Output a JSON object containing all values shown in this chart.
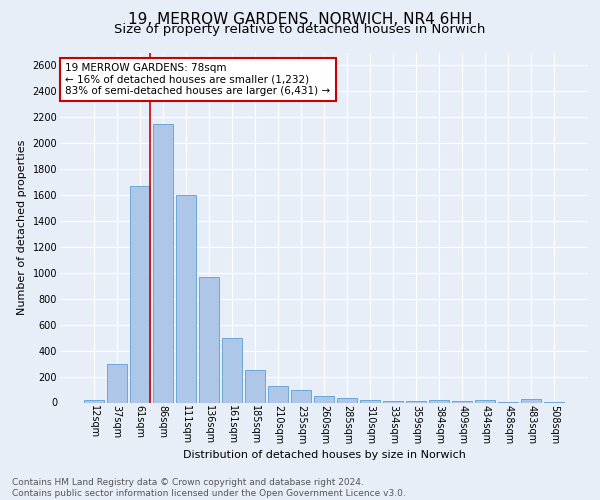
{
  "title": "19, MERROW GARDENS, NORWICH, NR4 6HH",
  "subtitle": "Size of property relative to detached houses in Norwich",
  "xlabel": "Distribution of detached houses by size in Norwich",
  "ylabel": "Number of detached properties",
  "footnote1": "Contains HM Land Registry data © Crown copyright and database right 2024.",
  "footnote2": "Contains public sector information licensed under the Open Government Licence v3.0.",
  "categories": [
    "12sqm",
    "37sqm",
    "61sqm",
    "86sqm",
    "111sqm",
    "136sqm",
    "161sqm",
    "185sqm",
    "210sqm",
    "235sqm",
    "260sqm",
    "285sqm",
    "310sqm",
    "334sqm",
    "359sqm",
    "384sqm",
    "409sqm",
    "434sqm",
    "458sqm",
    "483sqm",
    "508sqm"
  ],
  "values": [
    20,
    300,
    1670,
    2150,
    1600,
    970,
    500,
    248,
    125,
    100,
    50,
    35,
    20,
    15,
    10,
    20,
    10,
    20,
    5,
    25,
    5
  ],
  "bar_color": "#aec6e8",
  "bar_edge_color": "#5a9fd4",
  "vline_x_index": 2,
  "vline_color": "#cc0000",
  "annotation_text": "19 MERROW GARDENS: 78sqm\n← 16% of detached houses are smaller (1,232)\n83% of semi-detached houses are larger (6,431) →",
  "annotation_box_color": "#ffffff",
  "annotation_box_edge": "#cc0000",
  "ylim": [
    0,
    2700
  ],
  "yticks": [
    0,
    200,
    400,
    600,
    800,
    1000,
    1200,
    1400,
    1600,
    1800,
    2000,
    2200,
    2400,
    2600
  ],
  "background_color": "#e8eef7",
  "grid_color": "#ffffff",
  "title_fontsize": 11,
  "subtitle_fontsize": 9.5,
  "axis_label_fontsize": 8,
  "tick_fontsize": 7,
  "annotation_fontsize": 7.5,
  "footnote_fontsize": 6.5
}
